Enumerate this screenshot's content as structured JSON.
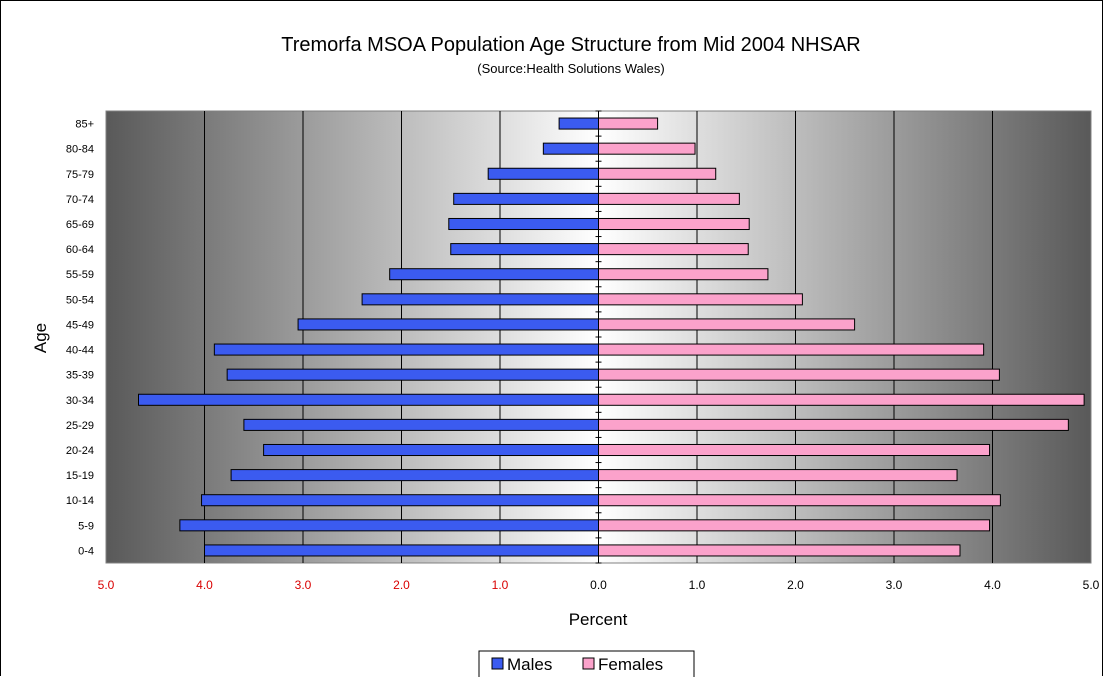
{
  "chart_data": {
    "type": "bar",
    "orientation": "horizontal-diverging",
    "title": "Tremorfa MSOA Population Age Structure from Mid 2004 NHSAR",
    "subtitle": "(Source:Health Solutions Wales)",
    "xlabel": "Percent",
    "ylabel": "Age",
    "xlim": [
      -5.0,
      5.0
    ],
    "x_ticks": [
      -5,
      -4,
      -3,
      -2,
      -1,
      0,
      1,
      2,
      3,
      4,
      5
    ],
    "x_tick_labels": [
      "5.0",
      "4.0",
      "3.0",
      "2.0",
      "1.0",
      "0.0",
      "1.0",
      "2.0",
      "3.0",
      "4.0",
      "5.0"
    ],
    "categories": [
      "0-4",
      "5-9",
      "10-14",
      "15-19",
      "20-24",
      "25-29",
      "30-34",
      "35-39",
      "40-44",
      "45-49",
      "50-54",
      "55-59",
      "60-64",
      "65-69",
      "70-74",
      "75-79",
      "80-84",
      "85+"
    ],
    "series": [
      {
        "name": "Males",
        "color": "#3B5BF0",
        "values": [
          4.0,
          4.25,
          4.03,
          3.73,
          3.4,
          3.6,
          4.67,
          3.77,
          3.9,
          3.05,
          2.4,
          2.12,
          1.5,
          1.52,
          1.47,
          1.12,
          0.56,
          0.4
        ]
      },
      {
        "name": "Females",
        "color": "#FBA2CB",
        "values": [
          3.67,
          3.97,
          4.08,
          3.64,
          3.97,
          4.77,
          4.93,
          4.07,
          3.91,
          2.6,
          2.07,
          1.72,
          1.52,
          1.53,
          1.43,
          1.19,
          0.98,
          0.6
        ]
      }
    ],
    "grid": true,
    "legend_position": "bottom",
    "tick_label_color_negative": "#D90000",
    "tick_label_color_positive": "#000000"
  }
}
